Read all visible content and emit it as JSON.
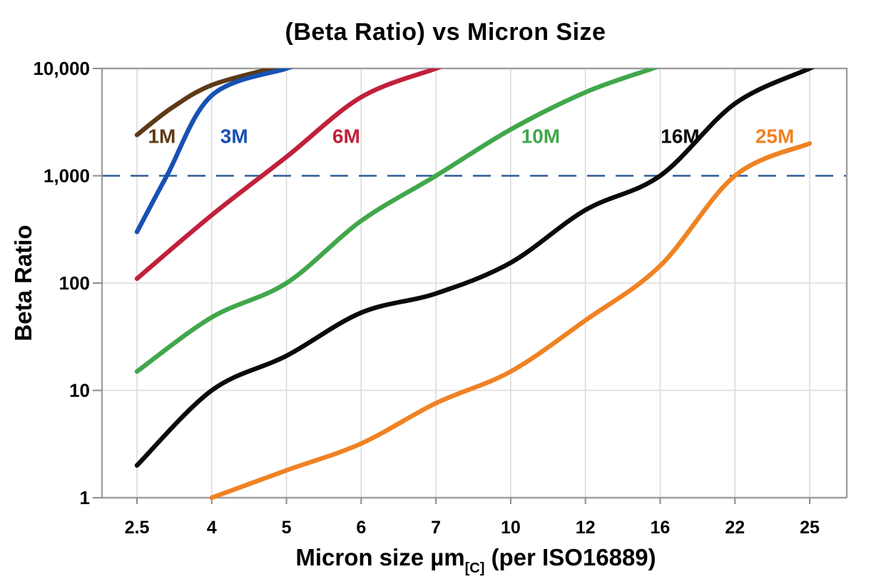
{
  "title": "(Beta Ratio) vs Micron Size",
  "chart_data": {
    "type": "line",
    "title": "(Beta Ratio) vs Micron Size",
    "xlabel": {
      "main": "Micron size µm",
      "sub": "[C]",
      "tail": " (per ISO16889)"
    },
    "ylabel": "Beta Ratio",
    "x_ticks": [
      "2.5",
      "4",
      "5",
      "6",
      "7",
      "10",
      "12",
      "16",
      "22",
      "25"
    ],
    "x_tick_values": [
      2.5,
      4,
      5,
      6,
      7,
      10,
      12,
      16,
      22,
      25
    ],
    "y_ticks": [
      "1",
      "10",
      "100",
      "1,000",
      "10,000"
    ],
    "y_tick_values": [
      1,
      10,
      100,
      1000,
      10000
    ],
    "y_scale": "log",
    "ylim": [
      1,
      10000
    ],
    "grid": true,
    "legend_position": "inline-labels",
    "colors": {
      "grid": "#DBDBDB",
      "frame": "#A0A0A0",
      "tick": "#8C8C8C",
      "text": "#000000",
      "reference": "#2F5B93"
    },
    "reference_line": {
      "value": 1000,
      "style": "dashed",
      "color": "#2F5B93"
    },
    "series": [
      {
        "name": "1M",
        "color": "#5E3A16",
        "label": {
          "text": "1M",
          "x": 3.0,
          "y": 2350
        },
        "points": [
          [
            2.5,
            2400
          ],
          [
            3.2,
            4300
          ],
          [
            4,
            7000
          ],
          [
            4.8,
            10000
          ]
        ]
      },
      {
        "name": "3M",
        "color": "#1751B3",
        "label": {
          "text": "3M",
          "x": 4.3,
          "y": 2350
        },
        "points": [
          [
            2.5,
            300
          ],
          [
            3.1,
            1000
          ],
          [
            4,
            5600
          ],
          [
            5,
            10000
          ]
        ]
      },
      {
        "name": "6M",
        "color": "#C1203B",
        "label": {
          "text": "6M",
          "x": 5.8,
          "y": 2350
        },
        "points": [
          [
            2.5,
            110
          ],
          [
            4,
            430
          ],
          [
            5,
            1500
          ],
          [
            6,
            5400
          ],
          [
            7,
            10000
          ]
        ]
      },
      {
        "name": "10M",
        "color": "#41A74B",
        "label": {
          "text": "10M",
          "x": 10.8,
          "y": 2350
        },
        "points": [
          [
            2.5,
            15
          ],
          [
            4,
            48
          ],
          [
            5,
            100
          ],
          [
            6,
            380
          ],
          [
            7,
            1000
          ],
          [
            10,
            2700
          ],
          [
            12,
            6000
          ],
          [
            15.6,
            10000
          ]
        ]
      },
      {
        "name": "16M",
        "color": "#0A0A0A",
        "label": {
          "text": "16M",
          "x": 17.6,
          "y": 2350
        },
        "points": [
          [
            2.5,
            2
          ],
          [
            4,
            10
          ],
          [
            5,
            21
          ],
          [
            6,
            53
          ],
          [
            7,
            80
          ],
          [
            10,
            155
          ],
          [
            12,
            480
          ],
          [
            16,
            1000
          ],
          [
            22,
            4700
          ],
          [
            25,
            10000
          ]
        ]
      },
      {
        "name": "25M",
        "color": "#F08223",
        "label": {
          "text": "25M",
          "x": 23.6,
          "y": 2350
        },
        "points": [
          [
            4,
            1
          ],
          [
            5,
            1.8
          ],
          [
            6,
            3.2
          ],
          [
            7,
            7.6
          ],
          [
            10,
            15
          ],
          [
            12,
            45
          ],
          [
            16,
            145
          ],
          [
            22,
            1000
          ],
          [
            25,
            2000
          ]
        ]
      }
    ]
  }
}
